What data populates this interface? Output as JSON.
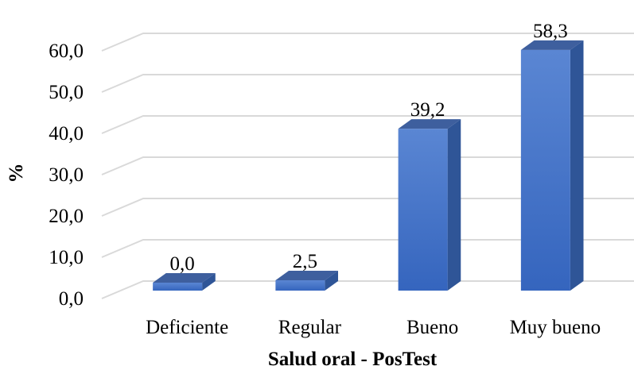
{
  "chart_data": {
    "type": "bar",
    "style": "3d-column",
    "categories": [
      "Deficiente",
      "Regular",
      "Bueno",
      "Muy bueno"
    ],
    "values": [
      0.0,
      2.5,
      39.2,
      58.3
    ],
    "data_labels": [
      "0,0",
      "2,5",
      "39,2",
      "58,3"
    ],
    "title": "",
    "xlabel": "Salud oral - PosTest",
    "ylabel": "%",
    "ylim": [
      0,
      60
    ],
    "yticks": [
      0,
      10,
      20,
      30,
      40,
      50,
      60
    ],
    "ytick_labels": [
      "0,0",
      "10,0",
      "20,0",
      "30,0",
      "40,0",
      "50,0",
      "60,0"
    ],
    "grid": true,
    "legend": "none",
    "colors": {
      "bar_front": "#4472c4",
      "bar_side": "#2f5597",
      "bar_top": "#3e5f9e",
      "grid": "#d9d9d9"
    }
  }
}
